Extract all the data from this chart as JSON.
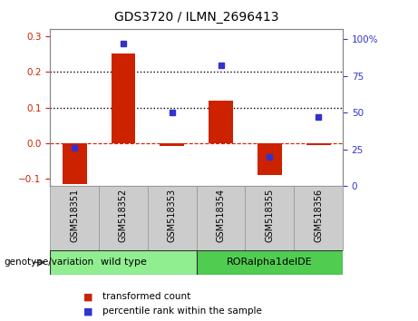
{
  "title": "GDS3720 / ILMN_2696413",
  "samples": [
    "GSM518351",
    "GSM518352",
    "GSM518353",
    "GSM518354",
    "GSM518355",
    "GSM518356"
  ],
  "transformed_count": [
    -0.115,
    0.25,
    -0.008,
    0.12,
    -0.09,
    -0.005
  ],
  "percentile_rank": [
    26,
    97,
    50,
    82,
    20,
    47
  ],
  "bar_color": "#cc2200",
  "dot_color": "#3333cc",
  "ylim_left": [
    -0.12,
    0.32
  ],
  "ylim_right": [
    0,
    107
  ],
  "yticks_left": [
    -0.1,
    0.0,
    0.1,
    0.2,
    0.3
  ],
  "yticks_right": [
    0,
    25,
    50,
    75,
    100
  ],
  "ytick_labels_right": [
    "0",
    "25",
    "50",
    "75",
    "100%"
  ],
  "hlines": [
    0.1,
    0.2
  ],
  "hline_zero_color": "#cc2200",
  "hline_grid_color": "#000000",
  "groups": [
    {
      "label": "wild type",
      "indices": [
        0,
        1,
        2
      ],
      "color": "#90ee90"
    },
    {
      "label": "RORalpha1delDE",
      "indices": [
        3,
        4,
        5
      ],
      "color": "#50cc50"
    }
  ],
  "group_label": "genotype/variation",
  "legend_transformed": "transformed count",
  "legend_percentile": "percentile rank within the sample",
  "bar_width": 0.5,
  "plot_bg": "#ffffff",
  "axis_label_color_left": "#cc2200",
  "axis_label_color_right": "#3333cc",
  "tick_bg": "#cccccc"
}
